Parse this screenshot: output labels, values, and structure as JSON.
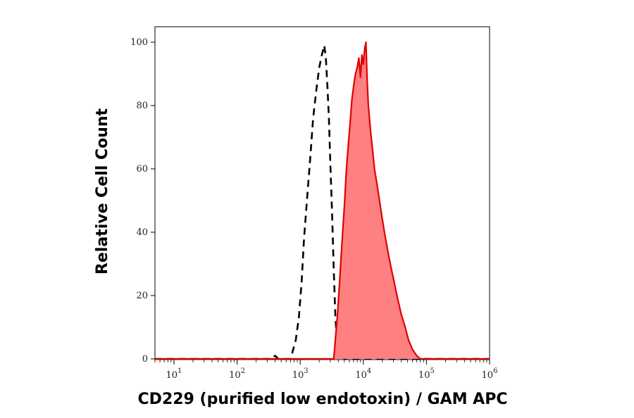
{
  "chart_data": {
    "type": "area",
    "title": "",
    "xlabel": "CD229 (purified low endotoxin) / GAM APC",
    "ylabel": "Relative Cell Count",
    "x_scale": "log",
    "xlim": [
      5,
      1000000
    ],
    "ylim": [
      0,
      100
    ],
    "x_ticks": [
      {
        "value": 10,
        "base": "10",
        "exp": "1"
      },
      {
        "value": 100,
        "base": "10",
        "exp": "2"
      },
      {
        "value": 1000,
        "base": "10",
        "exp": "3"
      },
      {
        "value": 10000,
        "base": "10",
        "exp": "4"
      },
      {
        "value": 100000,
        "base": "10",
        "exp": "5"
      },
      {
        "value": 1000000,
        "base": "10",
        "exp": "6"
      }
    ],
    "y_ticks": [
      {
        "value": 0,
        "label": "0"
      },
      {
        "value": 20,
        "label": "20"
      },
      {
        "value": 40,
        "label": "40"
      },
      {
        "value": 60,
        "label": "60"
      },
      {
        "value": 80,
        "label": "80"
      },
      {
        "value": 100,
        "label": "100"
      }
    ],
    "grid": false,
    "series": [
      {
        "style": "dashed",
        "color": "#000000",
        "points": [
          [
            5,
            0
          ],
          [
            350,
            0
          ],
          [
            400,
            1
          ],
          [
            450,
            0
          ],
          [
            700,
            0
          ],
          [
            750,
            2
          ],
          [
            850,
            6
          ],
          [
            950,
            13
          ],
          [
            1050,
            24
          ],
          [
            1150,
            38
          ],
          [
            1300,
            52
          ],
          [
            1450,
            64
          ],
          [
            1600,
            76
          ],
          [
            1800,
            85
          ],
          [
            2000,
            92
          ],
          [
            2200,
            96
          ],
          [
            2400,
            99
          ],
          [
            2550,
            95
          ],
          [
            2700,
            86
          ],
          [
            2850,
            76
          ],
          [
            3000,
            62
          ],
          [
            3200,
            46
          ],
          [
            3400,
            28
          ],
          [
            3600,
            14
          ],
          [
            3800,
            6
          ],
          [
            4200,
            2
          ],
          [
            5000,
            0
          ],
          [
            1000000,
            0
          ]
        ]
      },
      {
        "style": "solid",
        "color": "#e00000",
        "fill": "#ff8080",
        "points": [
          [
            5,
            0
          ],
          [
            3400,
            0
          ],
          [
            3600,
            6
          ],
          [
            3900,
            14
          ],
          [
            4200,
            24
          ],
          [
            4600,
            37
          ],
          [
            5000,
            48
          ],
          [
            5400,
            60
          ],
          [
            5800,
            68
          ],
          [
            6200,
            75
          ],
          [
            6600,
            82
          ],
          [
            7000,
            86
          ],
          [
            7500,
            90
          ],
          [
            8000,
            92
          ],
          [
            8500,
            95
          ],
          [
            9000,
            89
          ],
          [
            9500,
            96
          ],
          [
            10000,
            93
          ],
          [
            10500,
            98
          ],
          [
            11000,
            100
          ],
          [
            11500,
            88
          ],
          [
            12000,
            80
          ],
          [
            13000,
            72
          ],
          [
            14000,
            66
          ],
          [
            15000,
            60
          ],
          [
            16500,
            55
          ],
          [
            18000,
            50
          ],
          [
            20000,
            44
          ],
          [
            22000,
            39
          ],
          [
            25000,
            33
          ],
          [
            28000,
            28
          ],
          [
            31000,
            24
          ],
          [
            35000,
            19
          ],
          [
            40000,
            14
          ],
          [
            46000,
            10
          ],
          [
            52000,
            6
          ],
          [
            60000,
            3
          ],
          [
            70000,
            1
          ],
          [
            80000,
            0
          ],
          [
            1000000,
            0
          ]
        ]
      }
    ]
  }
}
